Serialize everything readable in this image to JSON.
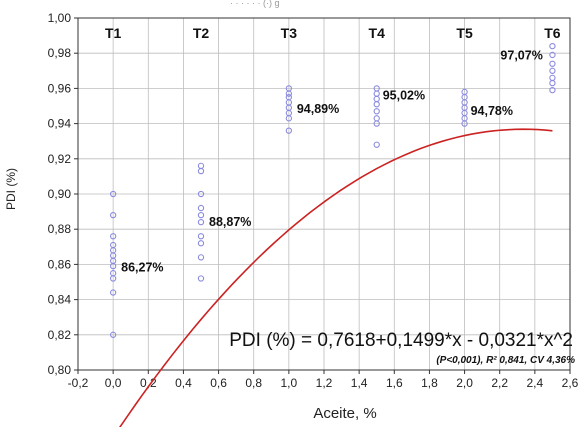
{
  "header_fragment": "· · · · · · (·) g",
  "chart_data": {
    "type": "scatter",
    "xlabel": "Aceite, %",
    "ylabel": "PDI (%)",
    "xlim": [
      -0.2,
      2.6
    ],
    "ylim": [
      0.8,
      1.0
    ],
    "x_ticks": [
      "-0,2",
      "0,0",
      "0,2",
      "0,4",
      "0,6",
      "0,8",
      "1,0",
      "1,2",
      "1,4",
      "1,6",
      "1,8",
      "2,0",
      "2,2",
      "2,4",
      "2,6"
    ],
    "y_ticks": [
      "0,80",
      "0,82",
      "0,84",
      "0,86",
      "0,88",
      "0,90",
      "0,92",
      "0,94",
      "0,96",
      "0,98",
      "1,00"
    ],
    "grid": true,
    "treatments": [
      {
        "label": "T1",
        "x": 0.0,
        "mean_label": "86,27%",
        "mean": 0.8627
      },
      {
        "label": "T2",
        "x": 0.5,
        "mean_label": "88,87%",
        "mean": 0.8887
      },
      {
        "label": "T3",
        "x": 1.0,
        "mean_label": "94,89%",
        "mean": 0.9489
      },
      {
        "label": "T4",
        "x": 1.5,
        "mean_label": "95,02%",
        "mean": 0.9502
      },
      {
        "label": "T5",
        "x": 2.0,
        "mean_label": "94,78%",
        "mean": 0.9478
      },
      {
        "label": "T6",
        "x": 2.5,
        "mean_label": "97,07%",
        "mean": 0.9707
      }
    ],
    "points": [
      {
        "x": 0.0,
        "y": [
          0.82,
          0.844,
          0.852,
          0.855,
          0.859,
          0.862,
          0.865,
          0.868,
          0.871,
          0.876,
          0.888,
          0.9
        ]
      },
      {
        "x": 0.5,
        "y": [
          0.852,
          0.864,
          0.872,
          0.876,
          0.884,
          0.888,
          0.892,
          0.9,
          0.913,
          0.916
        ]
      },
      {
        "x": 1.0,
        "y": [
          0.936,
          0.943,
          0.946,
          0.949,
          0.952,
          0.955,
          0.957,
          0.96
        ]
      },
      {
        "x": 1.5,
        "y": [
          0.928,
          0.94,
          0.943,
          0.947,
          0.951,
          0.954,
          0.957,
          0.96
        ]
      },
      {
        "x": 2.0,
        "y": [
          0.94,
          0.943,
          0.946,
          0.949,
          0.952,
          0.955,
          0.958
        ]
      },
      {
        "x": 2.5,
        "y": [
          0.959,
          0.963,
          0.966,
          0.97,
          0.974,
          0.979,
          0.984
        ]
      }
    ],
    "fit": {
      "intercept": 0.7618,
      "b1": 0.1499,
      "b2": -0.0321,
      "x_range": [
        0.0,
        2.5
      ],
      "equation_text": "PDI (%) = 0,7618+0,1499*x - 0,0321*x^2",
      "stats_text": "(P<0,001), R² 0,841, CV 4,36%"
    },
    "colors": {
      "marker": "#8a8ae0",
      "fit_line": "#cc2222",
      "grid": "#bdbdbd",
      "axis": "#333333"
    }
  }
}
